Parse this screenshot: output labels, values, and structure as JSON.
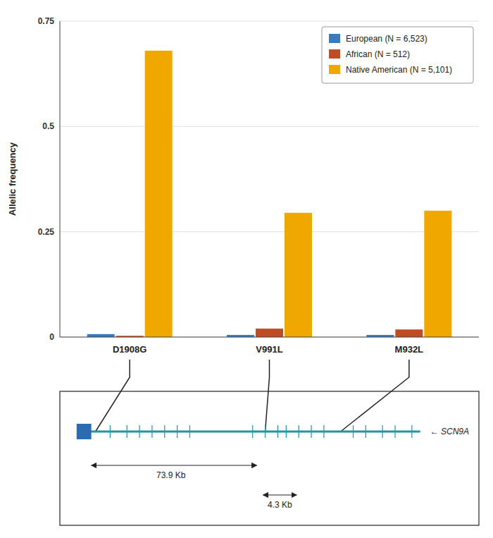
{
  "chart_data": {
    "type": "bar",
    "categories": [
      "D1908G",
      "V991L",
      "M932L"
    ],
    "series": [
      {
        "name": "European (N = 6,523)",
        "color": "#3a7bbf",
        "values": [
          0.007,
          0.005,
          0.005
        ]
      },
      {
        "name": "African (N = 512)",
        "color": "#bf4c23",
        "values": [
          0.003,
          0.02,
          0.018
        ]
      },
      {
        "name": "Native American (N = 5,101)",
        "color": "#f0a800",
        "values": [
          0.68,
          0.295,
          0.3
        ]
      }
    ],
    "ylabel": "Allelic frequency",
    "ylim": [
      0,
      0.75
    ],
    "yticks": [
      0,
      0.25,
      0.5,
      0.75
    ],
    "grid": true,
    "legend": "upper right",
    "annotations": [
      "73.9 Kb",
      "4.3 Kb",
      "←  SCN9A"
    ]
  }
}
